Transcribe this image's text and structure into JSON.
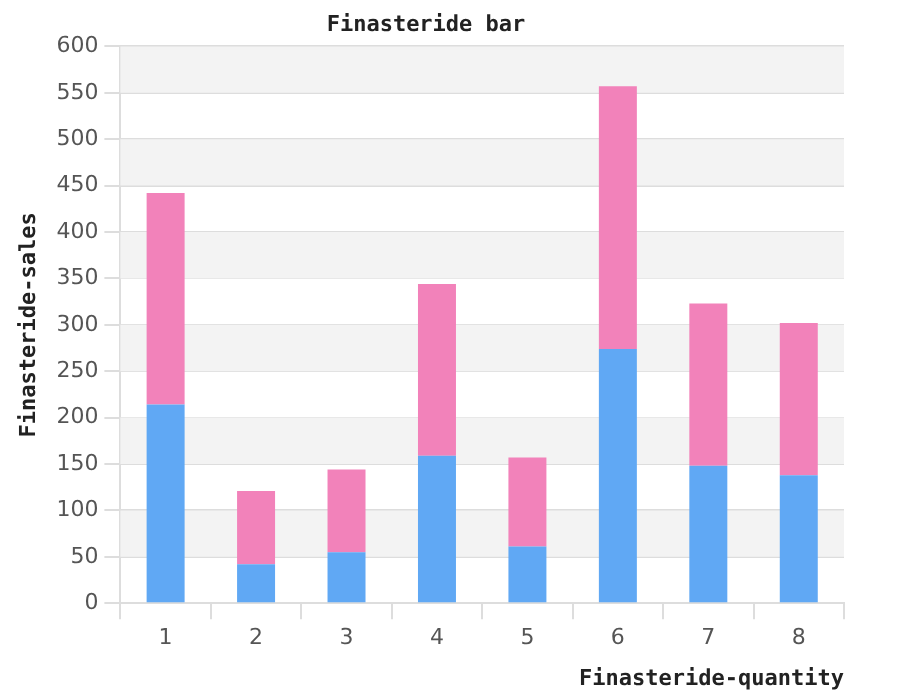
{
  "chart_data": {
    "type": "bar",
    "title": "Finasteride bar",
    "xlabel": "Finasteride-quantity",
    "ylabel": "Finasteride-sales",
    "categories": [
      "1",
      "2",
      "3",
      "4",
      "5",
      "6",
      "7",
      "8"
    ],
    "stacked": true,
    "series": [
      {
        "color": "#60a8f4",
        "values": [
          214,
          42,
          55,
          159,
          61,
          274,
          148,
          138
        ]
      },
      {
        "color": "#f282ba",
        "values": [
          228,
          79,
          89,
          185,
          96,
          283,
          175,
          164
        ]
      }
    ],
    "ylim": [
      0,
      600
    ],
    "yticks": [
      0,
      50,
      100,
      150,
      200,
      250,
      300,
      350,
      400,
      450,
      500,
      550,
      600
    ],
    "grid": true
  }
}
